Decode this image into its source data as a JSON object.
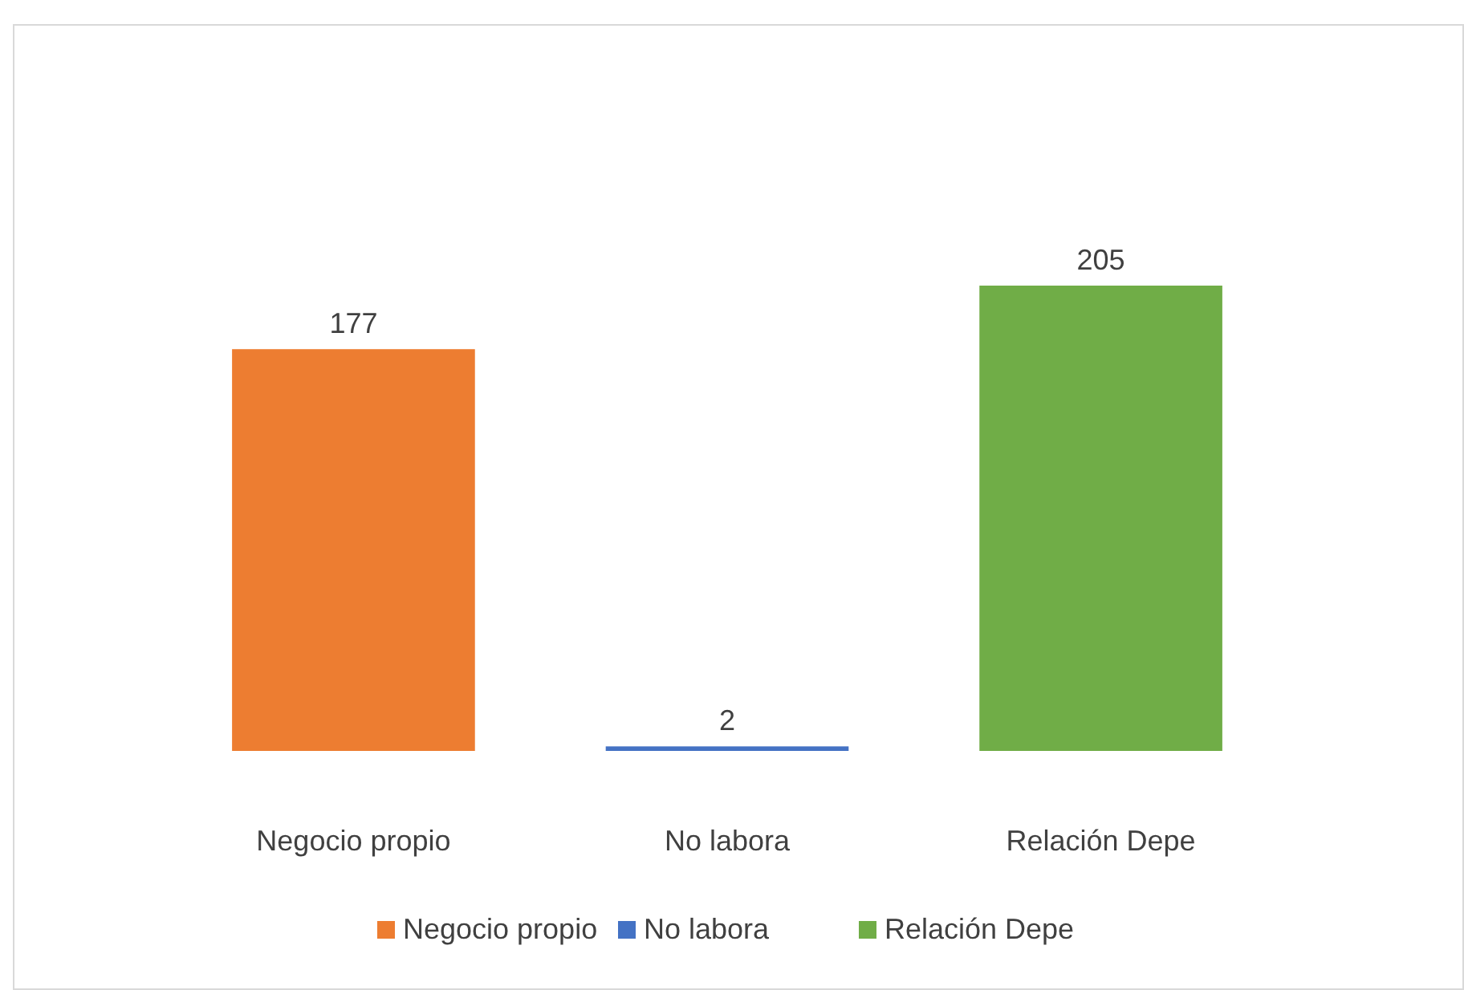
{
  "chart_data": {
    "type": "bar",
    "categories": [
      "Negocio propio",
      "No labora",
      "Relación Depe"
    ],
    "series": [
      {
        "name": "Negocio propio",
        "color": "#ed7d31",
        "values": [
          177,
          null,
          null
        ]
      },
      {
        "name": "No labora",
        "color": "#4472c4",
        "values": [
          null,
          2,
          null
        ]
      },
      {
        "name": "Relación Depe",
        "color": "#70ad47",
        "values": [
          null,
          null,
          205
        ]
      }
    ],
    "data_labels": true,
    "legend": "bottom"
  }
}
